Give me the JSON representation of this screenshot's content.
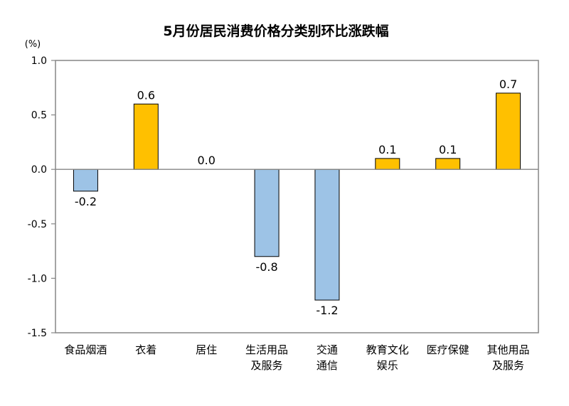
{
  "chart_data": {
    "type": "bar",
    "title": "5月份居民消费价格分类别环比涨跌幅",
    "unit_label": "(%)",
    "categories": [
      [
        "食品烟酒"
      ],
      [
        "衣着"
      ],
      [
        "居住"
      ],
      [
        "生活用品",
        "及服务"
      ],
      [
        "交通",
        "通信"
      ],
      [
        "教育文化",
        "娱乐"
      ],
      [
        "医疗保健"
      ],
      [
        "其他用品",
        "及服务"
      ]
    ],
    "values": [
      -0.2,
      0.6,
      0.0,
      -0.8,
      -1.2,
      0.1,
      0.1,
      0.7
    ],
    "value_labels": [
      "-0.2",
      "0.6",
      "0.0",
      "-0.8",
      "-1.2",
      "0.1",
      "0.1",
      "0.7"
    ],
    "ylim": [
      -1.5,
      1.0
    ],
    "yticks": [
      1.0,
      0.5,
      0.0,
      -0.5,
      -1.0,
      -1.5
    ],
    "ytick_labels": [
      "1.0",
      "0.5",
      "0.0",
      "-0.5",
      "-1.0",
      "-1.5"
    ],
    "colors": {
      "positive": "#FFC000",
      "negative": "#9DC3E6",
      "border": "#000000",
      "frame": "#868686"
    },
    "grid": false,
    "legend": "none"
  }
}
